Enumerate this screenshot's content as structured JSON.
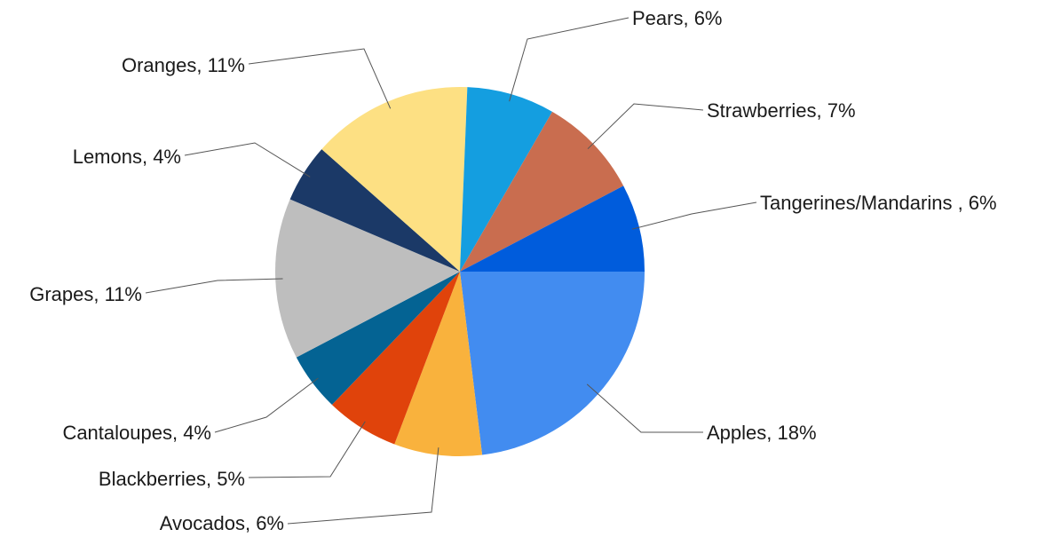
{
  "chart_data": {
    "type": "pie",
    "start_angle_deg": 0,
    "direction": "clockwise",
    "slices": [
      {
        "label": "Apples, 18%",
        "name": "Apples",
        "value": 18,
        "color": "#428CF0"
      },
      {
        "label": "Avocados, 6%",
        "name": "Avocados",
        "value": 6,
        "color": "#F9B23D"
      },
      {
        "label": "Blackberries, 5%",
        "name": "Blackberries",
        "value": 5,
        "color": "#E0430B"
      },
      {
        "label": "Cantaloupes, 4%",
        "name": "Cantaloupes",
        "value": 4,
        "color": "#046393"
      },
      {
        "label": "Grapes, 11%",
        "name": "Grapes",
        "value": 11,
        "color": "#BEBEBE"
      },
      {
        "label": "Lemons, 4%",
        "name": "Lemons",
        "value": 4,
        "color": "#1B3967"
      },
      {
        "label": "Oranges, 11%",
        "name": "Oranges",
        "value": 11,
        "color": "#FDE083"
      },
      {
        "label": "Pears, 6%",
        "name": "Pears",
        "value": 6,
        "color": "#149EE0"
      },
      {
        "label": "Strawberries, 7%",
        "name": "Strawberries",
        "value": 7,
        "color": "#C96D4F"
      },
      {
        "label": "Tangerines/Mandarins , 6%",
        "name": "Tangerines/Mandarins",
        "value": 6,
        "color": "#005CDC"
      }
    ]
  }
}
